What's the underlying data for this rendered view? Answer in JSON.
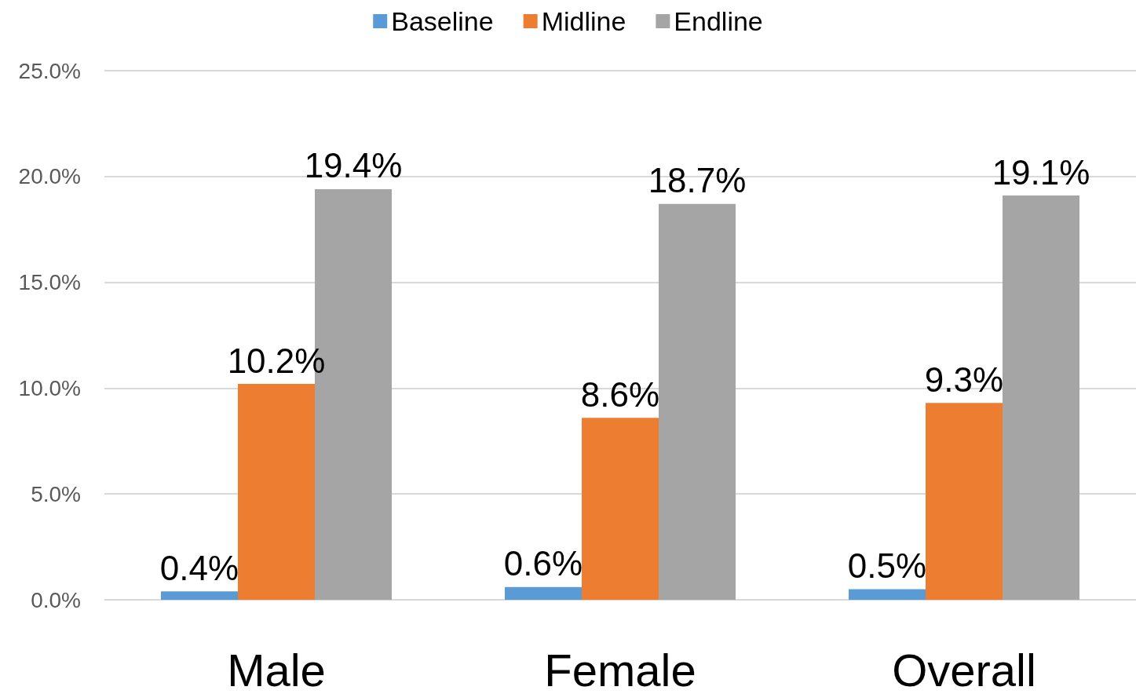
{
  "chart_data": {
    "type": "bar",
    "categories": [
      "Male",
      "Female",
      "Overall"
    ],
    "series": [
      {
        "name": "Baseline",
        "color": "#5b9bd5",
        "values": [
          0.4,
          0.6,
          0.5
        ],
        "value_labels": [
          "0.4%",
          "0.6%",
          "0.5%"
        ]
      },
      {
        "name": "Midline",
        "color": "#ed7d31",
        "values": [
          10.2,
          8.6,
          9.3
        ],
        "value_labels": [
          "10.2%",
          "8.6%",
          "9.3%"
        ]
      },
      {
        "name": "Endline",
        "color": "#a5a5a5",
        "values": [
          19.4,
          18.7,
          19.1
        ],
        "value_labels": [
          "19.4%",
          "18.7%",
          "19.1%"
        ]
      }
    ],
    "ylim": [
      0,
      25
    ],
    "yticks": [
      {
        "value": 0,
        "label": "0.0%"
      },
      {
        "value": 5,
        "label": "5.0%"
      },
      {
        "value": 10,
        "label": "10.0%"
      },
      {
        "value": 15,
        "label": "15.0%"
      },
      {
        "value": 20,
        "label": "20.0%"
      },
      {
        "value": 25,
        "label": "25.0%"
      }
    ],
    "grid": "y",
    "legend": "top"
  }
}
